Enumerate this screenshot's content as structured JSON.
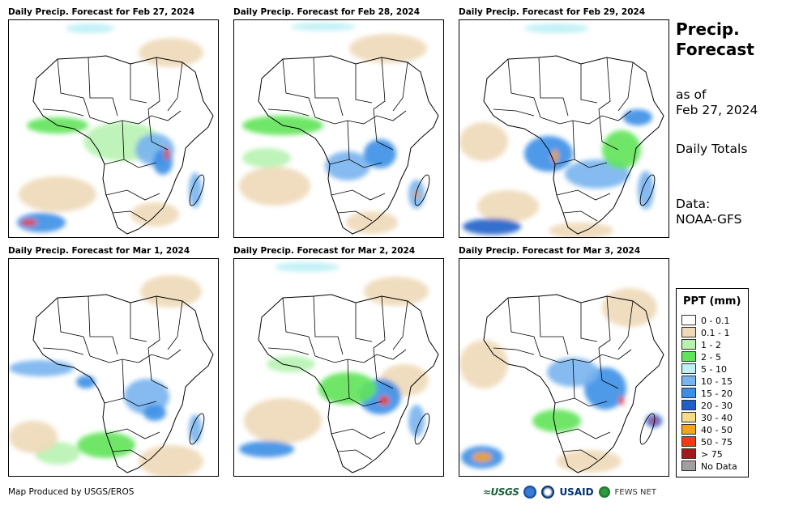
{
  "panels": [
    {
      "title": "Daily Precip. Forecast for Feb 27, 2024"
    },
    {
      "title": "Daily Precip. Forecast for Feb 28, 2024"
    },
    {
      "title": "Daily Precip. Forecast for Feb 29, 2024"
    },
    {
      "title": "Daily Precip. Forecast for Mar 1, 2024"
    },
    {
      "title": "Daily Precip. Forecast for Mar 2, 2024"
    },
    {
      "title": "Daily Precip. Forecast for Mar 3, 2024"
    }
  ],
  "sidebar": {
    "title_line1": "Precip.",
    "title_line2": "Forecast",
    "asof_line1": "as of",
    "asof_line2": "Feb 27, 2024",
    "totals": "Daily Totals",
    "data_line1": "Data:",
    "data_line2": "NOAA-GFS"
  },
  "legend": {
    "title": "PPT (mm)",
    "items": [
      {
        "label": "0 - 0.1",
        "color": "#ffffff"
      },
      {
        "label": "0.1 - 1",
        "color": "#eed9b8"
      },
      {
        "label": "1 - 2",
        "color": "#b7f2b1"
      },
      {
        "label": "2 - 5",
        "color": "#5fe35a"
      },
      {
        "label": "5 - 10",
        "color": "#bdeff5"
      },
      {
        "label": "10 - 15",
        "color": "#78b4ee"
      },
      {
        "label": "15 - 20",
        "color": "#3b8fe6"
      },
      {
        "label": "20 - 30",
        "color": "#1f5fc9"
      },
      {
        "label": "30 - 40",
        "color": "#f5dc8c"
      },
      {
        "label": "40 - 50",
        "color": "#f5a21d"
      },
      {
        "label": "50 - 75",
        "color": "#f03c12"
      },
      {
        "label": "> 75",
        "color": "#a11a1a"
      },
      {
        "label": "No Data",
        "color": "#a0a0a0"
      }
    ]
  },
  "footer": {
    "credit": "Map Produced by USGS/EROS",
    "logo_usgs": "≈USGS",
    "logo_usaid": "USAID",
    "logo_fews": "FEWS NET"
  }
}
